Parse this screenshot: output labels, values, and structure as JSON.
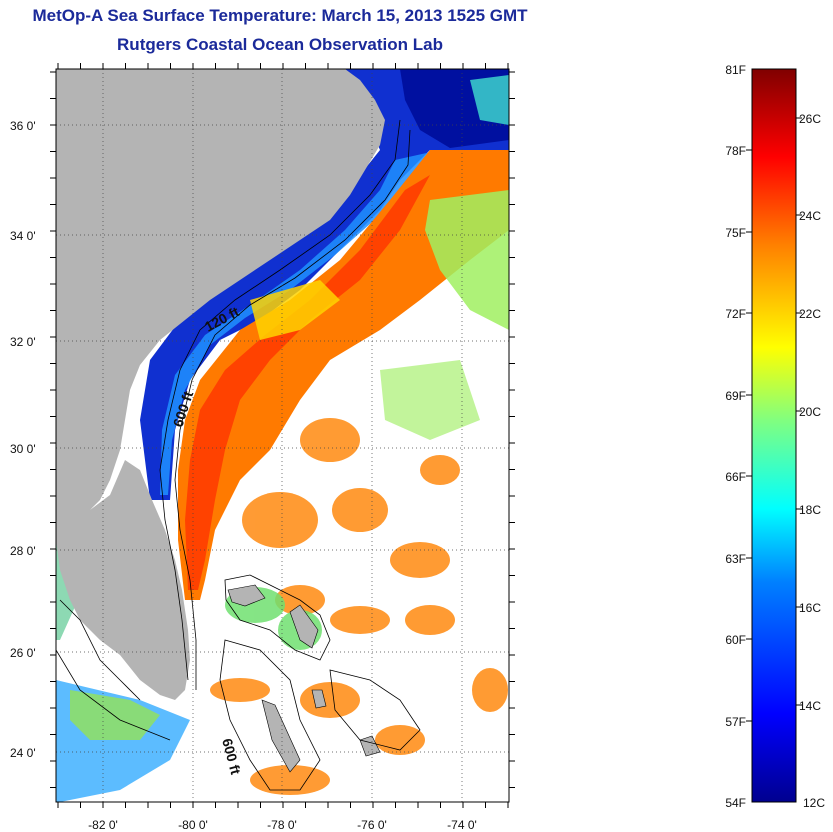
{
  "header": {
    "title": "MetOp-A Sea Surface Temperature:  March 15, 2013 1525 GMT",
    "subtitle": "Rutgers Coastal Ocean Observation Lab"
  },
  "map": {
    "lon_labels": [
      "-82 0'",
      "-80 0'",
      "-78 0'",
      "-76 0'",
      "-74 0'"
    ],
    "lat_labels": [
      "36 0'",
      "34 0'",
      "32 0'",
      "30 0'",
      "28 0'",
      "26 0'",
      "24 0'"
    ],
    "contour_labels": [
      "120 ft",
      "600 ft",
      "600 ft"
    ],
    "lon_range": [
      -83,
      -73
    ],
    "lat_range": [
      23,
      37
    ],
    "grid": true
  },
  "colorbar": {
    "fahrenheit_labels": [
      "81F",
      "78F",
      "75F",
      "72F",
      "69F",
      "66F",
      "63F",
      "60F",
      "57F",
      "54F"
    ],
    "celsius_labels": [
      "26C",
      "24C",
      "22C",
      "20C",
      "18C",
      "16C",
      "14C",
      "12C"
    ],
    "colors": [
      "#00008f",
      "#0000ff",
      "#0080ff",
      "#00ffff",
      "#80ff80",
      "#ffff00",
      "#ff8000",
      "#ff0000",
      "#800000"
    ]
  },
  "colors": {
    "land": "#b4b4b4",
    "title": "#1b2a9a",
    "no_data": "#ffffff"
  }
}
